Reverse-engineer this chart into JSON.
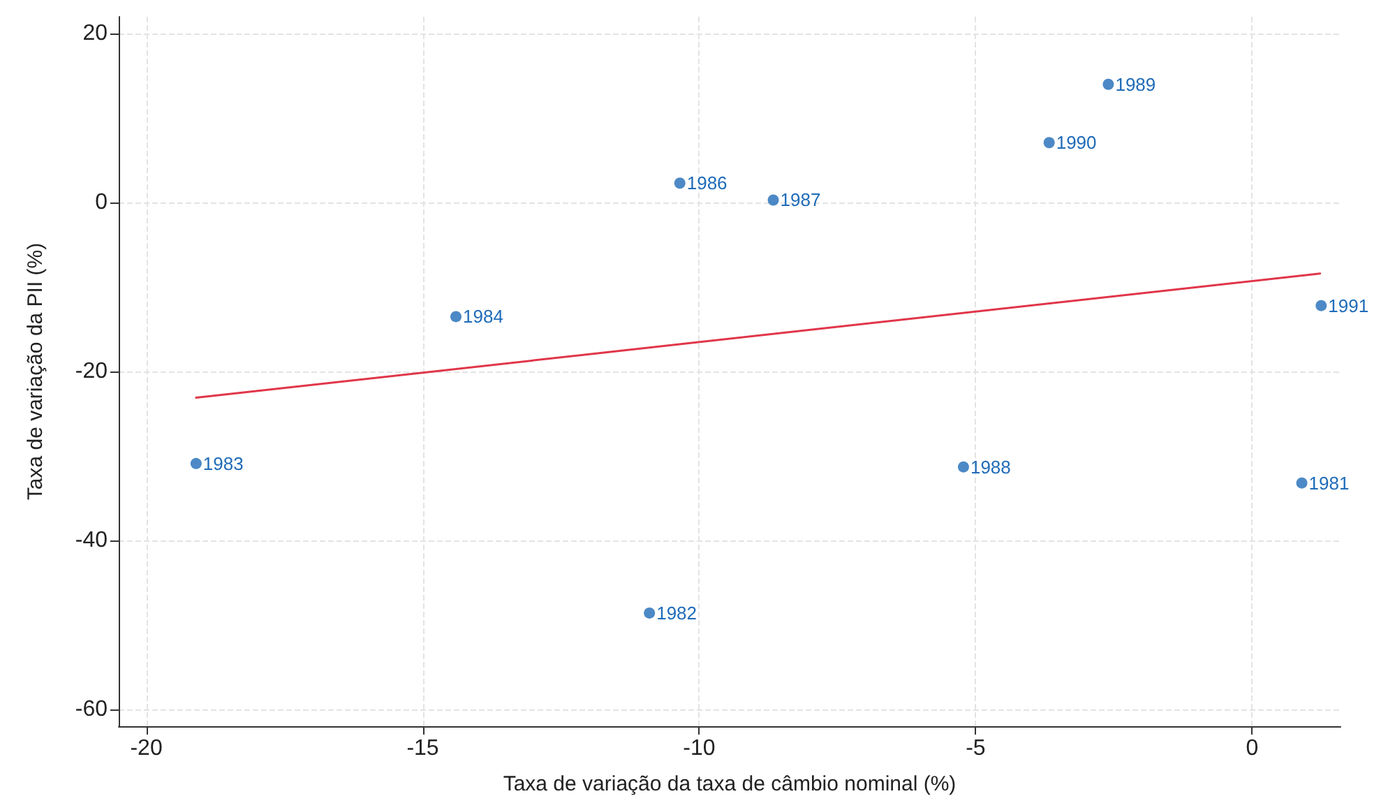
{
  "chart_data": {
    "type": "scatter",
    "xlabel": "Taxa de variação da taxa de câmbio nominal (%)",
    "ylabel": "Taxa de variação da PII (%)",
    "series": [
      {
        "color": "#1f6bb8",
        "marker": "circle",
        "x": [
          0.9,
          -10.9,
          -19.1,
          -14.4,
          -10.35,
          -8.66,
          -5.22,
          -2.6,
          -3.67,
          1.25
        ],
        "values": [
          -33.2,
          -48.6,
          -30.9,
          -13.5,
          2.3,
          0.3,
          -31.3,
          14.0,
          7.1,
          -12.2
        ]
      },
      {
        "type": "line",
        "color": "#e0364a",
        "x": [
          -19.1,
          1.23
        ],
        "values": [
          -23.1,
          -8.4
        ]
      }
    ],
    "annotations": [
      {
        "text": "1981",
        "x": 0.9,
        "y": -33.2
      },
      {
        "text": "1982",
        "x": -10.9,
        "y": -48.6
      },
      {
        "text": "1983",
        "x": -19.1,
        "y": -30.9
      },
      {
        "text": "1984",
        "x": -14.4,
        "y": -13.5
      },
      {
        "text": "1986",
        "x": -10.35,
        "y": 2.3
      },
      {
        "text": "1987",
        "x": -8.66,
        "y": 0.3
      },
      {
        "text": "1988",
        "x": -5.22,
        "y": -31.3
      },
      {
        "text": "1989",
        "x": -2.6,
        "y": 14.0
      },
      {
        "text": "1990",
        "x": -3.67,
        "y": 7.1
      },
      {
        "text": "1991",
        "x": 1.25,
        "y": -12.2
      }
    ],
    "xlim": [
      -20.5,
      1.6
    ],
    "xticks": [
      -20,
      -15,
      -10,
      -5,
      0
    ],
    "ylim": [
      -62,
      22
    ],
    "yticks": [
      -60,
      -40,
      -20,
      0,
      20
    ],
    "grid": true,
    "line_style": "solid"
  }
}
